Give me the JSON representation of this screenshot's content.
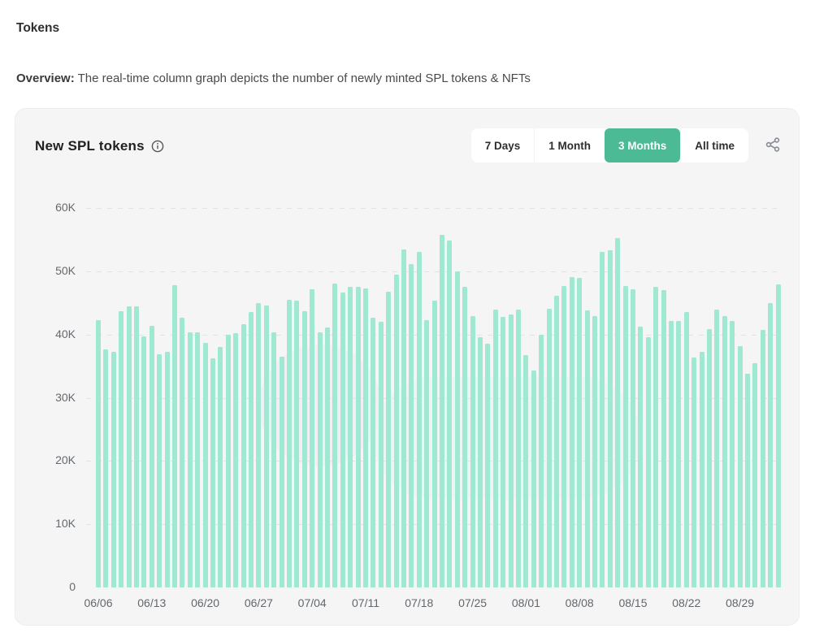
{
  "page": {
    "title": "Tokens",
    "overview_label": "Overview:",
    "overview_text": " The real-time column graph depicts the number of newly minted SPL tokens & NFTs"
  },
  "card": {
    "title": "New SPL tokens",
    "icons": {
      "info": "info-circle-icon",
      "share": "share-nodes-icon"
    },
    "accent_color": "#4DBA96",
    "time_ranges": [
      {
        "label": "7 Days",
        "active": false
      },
      {
        "label": "1 Month",
        "active": false
      },
      {
        "label": "3 Months",
        "active": true
      },
      {
        "label": "All time",
        "active": false
      }
    ]
  },
  "chart_data": {
    "type": "bar",
    "title": "New SPL tokens",
    "ylabel": "",
    "xlabel": "",
    "bar_color": "#9FE8D2",
    "grid": "dashed-horizontal",
    "ylim": [
      0,
      60000
    ],
    "y_ticks": [
      {
        "label": "60K",
        "value": 60000
      },
      {
        "label": "50K",
        "value": 50000
      },
      {
        "label": "40K",
        "value": 40000
      },
      {
        "label": "30K",
        "value": 30000
      },
      {
        "label": "20K",
        "value": 20000
      },
      {
        "label": "10K",
        "value": 10000
      },
      {
        "label": "0",
        "value": 0
      }
    ],
    "x_tick_interval": 7,
    "x_tick_labels": [
      "06/06",
      "06/13",
      "06/20",
      "06/27",
      "07/04",
      "07/11",
      "07/18",
      "07/25",
      "08/01",
      "08/08",
      "08/15",
      "08/22",
      "08/29"
    ],
    "start_date": "06/06",
    "values": [
      42300,
      37700,
      37200,
      43700,
      44400,
      44500,
      39700,
      41400,
      36900,
      37300,
      47800,
      42700,
      40400,
      40400,
      38700,
      36200,
      38000,
      40000,
      40200,
      41600,
      43500,
      45000,
      44600,
      40300,
      36500,
      45500,
      45300,
      43700,
      47200,
      40400,
      41100,
      48100,
      46700,
      47500,
      47500,
      47300,
      42700,
      42000,
      46800,
      49500,
      53400,
      51200,
      53000,
      42300,
      45400,
      55700,
      54800,
      50000,
      47500,
      42900,
      39600,
      38500,
      44000,
      42800,
      43200,
      44000,
      36700,
      34300,
      39900,
      44100,
      46100,
      47700,
      49100,
      49000,
      43800,
      42900,
      53000,
      53300,
      55300,
      47700,
      47200,
      41300,
      39600,
      47600,
      47000,
      42200,
      42200,
      43500,
      36400,
      37300,
      40900,
      43900,
      42900,
      42200,
      38200,
      33800,
      35500,
      40700,
      45000,
      47900
    ]
  }
}
